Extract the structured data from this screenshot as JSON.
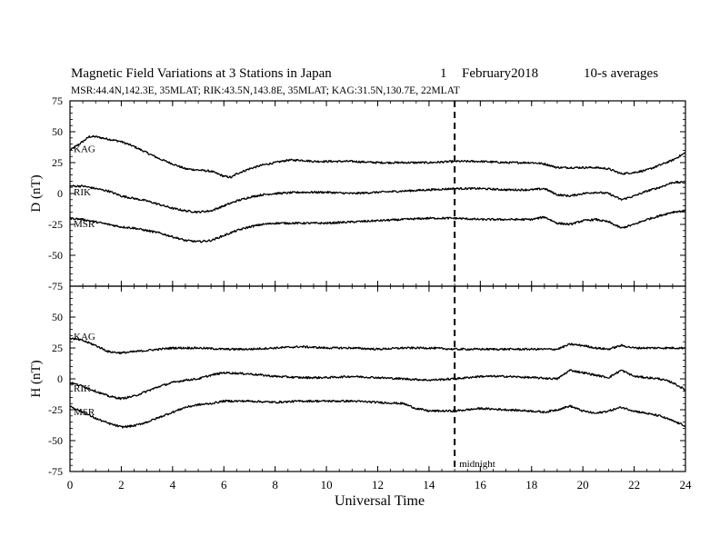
{
  "header": {
    "title": "Magnetic Field Variations at 3 Stations in Japan",
    "day": "1",
    "month_year": "February2018",
    "averaging": "10-s averages",
    "stations_line": "MSR:44.4N,142.3E, 35MLAT;  RIK:43.5N,143.8E, 35MLAT;  KAG:31.5N,130.7E, 22MLAT"
  },
  "colors": {
    "line": "#000000",
    "background": "#ffffff"
  },
  "chart_data": [
    {
      "type": "line",
      "ylabel": "D (nT)",
      "xlabel": "Universal Time",
      "xlim": [
        0,
        24
      ],
      "ylim": [
        -75,
        75
      ],
      "yticks": [
        75,
        50,
        25,
        0,
        -25,
        -50,
        -75
      ],
      "xticks": [
        0,
        2,
        4,
        6,
        8,
        10,
        12,
        14,
        16,
        18,
        20,
        22,
        24
      ],
      "grid": false,
      "annotation": {
        "x": 15,
        "style": "dashed"
      },
      "series": [
        {
          "name": "KAG",
          "x": [
            0,
            0.5,
            0.75,
            1,
            1.5,
            2,
            2.5,
            3,
            3.5,
            4,
            4.5,
            5,
            5.5,
            6,
            6.3,
            6.5,
            7,
            7.5,
            8,
            8.5,
            9,
            9.5,
            10,
            11,
            12,
            13,
            14,
            15,
            16,
            17,
            18,
            18.5,
            19,
            19.5,
            20,
            20.5,
            21,
            21.5,
            22,
            22.5,
            23,
            23.5,
            24
          ],
          "y": [
            35,
            42,
            46,
            46,
            44,
            42,
            38,
            33,
            28,
            24,
            20,
            19,
            18,
            14,
            13,
            16,
            20,
            23,
            25,
            27,
            27,
            26,
            26,
            26,
            25,
            25,
            25,
            26,
            26,
            25,
            25,
            24,
            21,
            21,
            21,
            21,
            20,
            16,
            17,
            19,
            23,
            27,
            33
          ]
        },
        {
          "name": "RIK",
          "x": [
            0,
            0.5,
            1,
            1.5,
            2,
            2.5,
            3,
            3.5,
            4,
            4.5,
            5,
            5.5,
            6,
            6.5,
            7,
            7.5,
            8,
            9,
            10,
            11,
            12,
            13,
            14,
            15,
            16,
            17,
            18,
            18.5,
            19,
            19.5,
            20,
            20.5,
            21,
            21.5,
            22,
            22.5,
            23,
            23.5,
            24
          ],
          "y": [
            6,
            6,
            4,
            2,
            -2,
            -4,
            -6,
            -9,
            -12,
            -14,
            -15,
            -14,
            -10,
            -6,
            -3,
            -1,
            0,
            1,
            1,
            0,
            1,
            2,
            3,
            4,
            4,
            3,
            3,
            4,
            -1,
            -2,
            0,
            1,
            0,
            -5,
            -2,
            2,
            5,
            9,
            9
          ]
        },
        {
          "name": "MSR",
          "x": [
            0,
            0.5,
            1,
            1.5,
            2,
            2.5,
            3,
            3.5,
            4,
            4.5,
            5,
            5.5,
            6,
            6.5,
            7,
            7.5,
            8,
            9,
            10,
            11,
            12,
            13,
            14,
            15,
            16,
            17,
            18,
            18.5,
            19,
            19.5,
            20,
            20.5,
            21,
            21.5,
            22,
            22.5,
            23,
            23.5,
            24
          ],
          "y": [
            -20,
            -21,
            -23,
            -25,
            -27,
            -28,
            -30,
            -32,
            -35,
            -38,
            -39,
            -38,
            -34,
            -30,
            -27,
            -25,
            -24,
            -24,
            -24,
            -23,
            -22,
            -21,
            -20,
            -20,
            -21,
            -21,
            -21,
            -19,
            -24,
            -25,
            -22,
            -21,
            -23,
            -28,
            -25,
            -21,
            -18,
            -15,
            -14
          ]
        }
      ]
    },
    {
      "type": "line",
      "ylabel": "H (nT)",
      "xlabel": "Universal Time",
      "xlim": [
        0,
        24
      ],
      "ylim": [
        -75,
        75
      ],
      "yticks": [
        75,
        50,
        25,
        0,
        -25,
        -50,
        -75
      ],
      "xticks": [
        0,
        2,
        4,
        6,
        8,
        10,
        12,
        14,
        16,
        18,
        20,
        22,
        24
      ],
      "grid": false,
      "annotation": {
        "x": 15,
        "style": "dashed",
        "label": "midnight"
      },
      "series": [
        {
          "name": "KAG",
          "x": [
            0,
            0.5,
            1,
            1.5,
            2,
            2.5,
            3,
            3.5,
            4,
            5,
            6,
            7,
            8,
            9,
            10,
            11,
            12,
            13,
            14,
            15,
            16,
            17,
            18,
            19,
            19.5,
            20,
            20.5,
            21,
            21.5,
            22,
            23,
            24
          ],
          "y": [
            33,
            31,
            27,
            22,
            21,
            22,
            23,
            24,
            25,
            25,
            24,
            24,
            25,
            26,
            25,
            25,
            24,
            25,
            25,
            24,
            24,
            24,
            24,
            24,
            28,
            27,
            25,
            24,
            27,
            25,
            25,
            25
          ]
        },
        {
          "name": "RIK",
          "x": [
            0,
            0.5,
            1,
            1.5,
            2,
            2.5,
            3,
            3.5,
            4,
            4.5,
            5,
            5.5,
            6,
            7,
            8,
            9,
            10,
            11,
            12,
            13,
            14,
            15,
            16,
            17,
            18,
            19,
            19.5,
            20,
            20.5,
            21,
            21.5,
            22,
            23,
            23.5,
            24
          ],
          "y": [
            -3,
            -6,
            -10,
            -14,
            -16,
            -14,
            -10,
            -6,
            -3,
            -1,
            0,
            3,
            5,
            4,
            2,
            1,
            1,
            2,
            1,
            0,
            -1,
            0,
            2,
            2,
            1,
            0,
            7,
            5,
            3,
            1,
            7,
            2,
            0,
            -3,
            -9
          ]
        },
        {
          "name": "MSR",
          "x": [
            0,
            0.5,
            1,
            1.5,
            2,
            2.5,
            3,
            3.5,
            4,
            4.5,
            5,
            5.5,
            6,
            7,
            8,
            9,
            10,
            11,
            12,
            13,
            13.5,
            14,
            15,
            16,
            17,
            18,
            18.5,
            19,
            19.5,
            20,
            20.5,
            21,
            21.5,
            22,
            22.5,
            23,
            23.5,
            24
          ],
          "y": [
            -22,
            -27,
            -32,
            -36,
            -39,
            -38,
            -35,
            -31,
            -27,
            -23,
            -21,
            -20,
            -18,
            -18,
            -19,
            -18,
            -18,
            -18,
            -19,
            -20,
            -24,
            -26,
            -26,
            -24,
            -25,
            -26,
            -27,
            -25,
            -22,
            -26,
            -28,
            -26,
            -23,
            -26,
            -28,
            -30,
            -34,
            -38
          ]
        }
      ]
    }
  ]
}
